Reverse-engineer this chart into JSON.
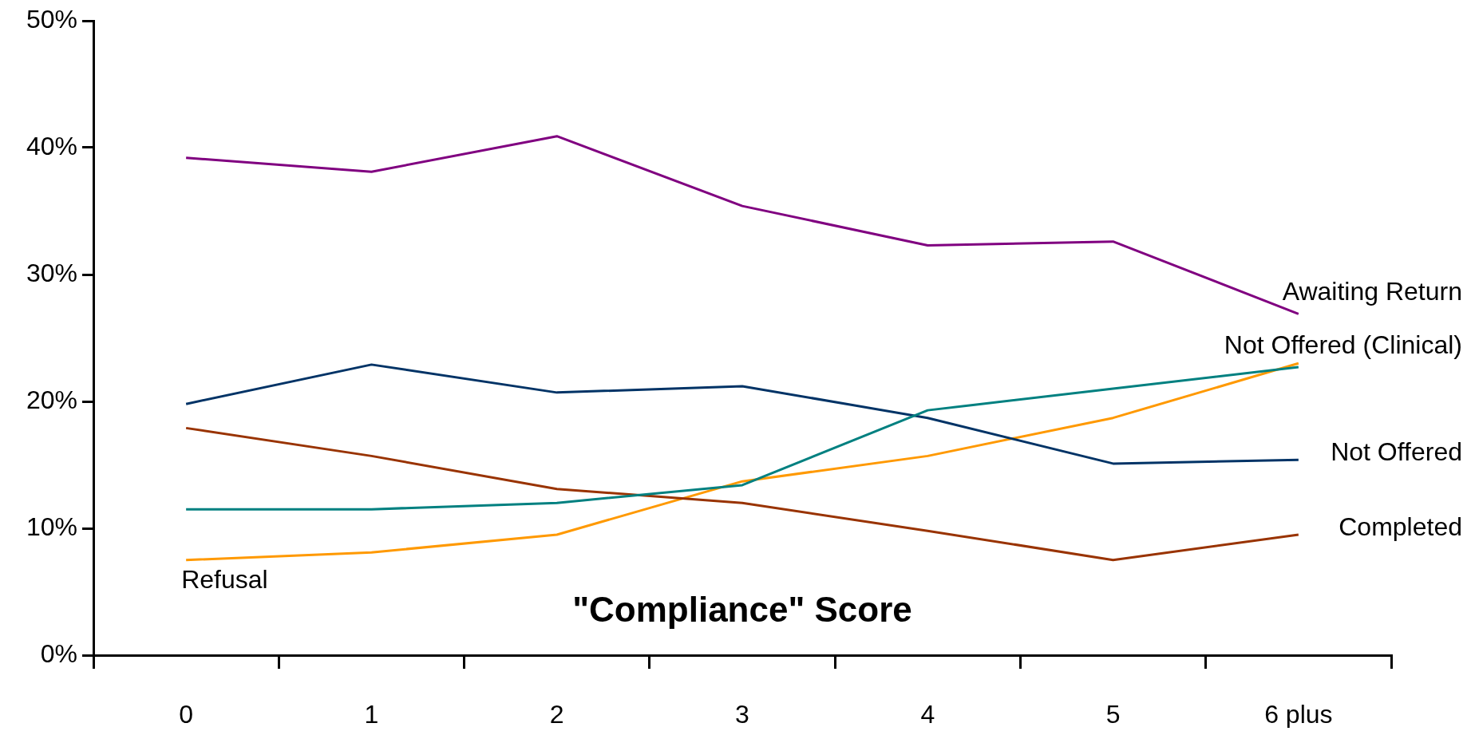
{
  "chart_data": {
    "type": "line",
    "categories": [
      "0",
      "1",
      "2",
      "3",
      "4",
      "5",
      "6 plus"
    ],
    "series": [
      {
        "name": "Awaiting Return",
        "color": "#800080",
        "values": [
          39.2,
          38.1,
          40.9,
          35.4,
          32.3,
          32.6,
          26.9
        ]
      },
      {
        "name": "Not Offered (Clinical)",
        "color": "#008080",
        "values": [
          11.5,
          11.5,
          12.0,
          13.4,
          19.3,
          21.0,
          22.7
        ]
      },
      {
        "name": "Not Offered",
        "color": "#003366",
        "values": [
          19.8,
          22.9,
          20.7,
          21.2,
          18.7,
          15.1,
          15.4
        ]
      },
      {
        "name": "Completed",
        "color": "#993300",
        "values": [
          17.9,
          15.7,
          13.1,
          12.0,
          9.8,
          7.5,
          9.5
        ]
      },
      {
        "name": "Refusal",
        "color": "#ff9900",
        "values": [
          7.5,
          8.1,
          9.5,
          13.7,
          15.7,
          18.7,
          23.0
        ]
      }
    ],
    "xlabel": "\"Compliance\" Score",
    "ylim": [
      0,
      50
    ],
    "yticks": [
      {
        "value": 0,
        "label": "0%"
      },
      {
        "value": 10,
        "label": "10%"
      },
      {
        "value": 20,
        "label": "20%"
      },
      {
        "value": 30,
        "label": "30%"
      },
      {
        "value": 40,
        "label": "40%"
      },
      {
        "value": 50,
        "label": "50%"
      }
    ],
    "grid": false,
    "legend": false,
    "marker": "none",
    "line_style": "solid"
  }
}
